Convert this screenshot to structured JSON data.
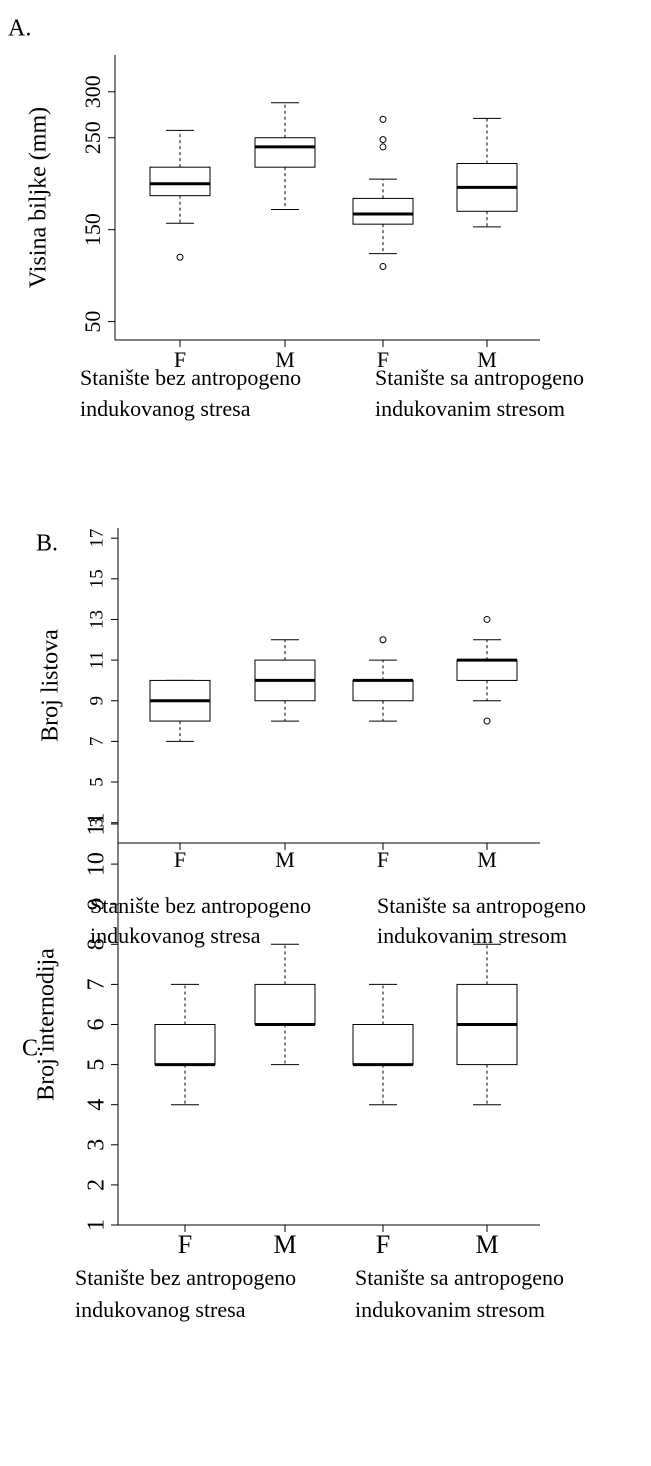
{
  "chart_data": [
    {
      "type": "box",
      "label": "A.",
      "ylabel": "Visina biljke (mm)",
      "categories": [
        "F",
        "M",
        "F",
        "M"
      ],
      "group_labels": [
        [
          "Stanište bez antropogeno",
          "indukovanog stresa"
        ],
        [
          "Stanište sa antropogeno",
          "indukovanim stresom"
        ]
      ],
      "ylim": [
        30,
        340
      ],
      "yticks": [
        50,
        150,
        250,
        300
      ],
      "boxes": [
        {
          "whislo": 157,
          "q1": 187,
          "med": 200,
          "q3": 218,
          "whishi": 258,
          "fliers": [
            120
          ]
        },
        {
          "whislo": 172,
          "q1": 218,
          "med": 240,
          "q3": 250,
          "whishi": 288,
          "fliers": []
        },
        {
          "whislo": 124,
          "q1": 156,
          "med": 167,
          "q3": 184,
          "whishi": 205,
          "fliers": [
            270,
            248,
            240,
            110
          ]
        },
        {
          "whislo": 153,
          "q1": 170,
          "med": 196,
          "q3": 222,
          "whishi": 271,
          "fliers": []
        }
      ]
    },
    {
      "type": "box",
      "label": "B.",
      "ylabel": "Broj listova",
      "categories": [
        "F",
        "M",
        "F",
        "M"
      ],
      "group_labels": [
        [
          "Stanište bez antropogeno",
          "indukovanog stresa"
        ],
        [
          "Stanište sa antropogeno",
          "indukovanim stresom"
        ]
      ],
      "ylim": [
        2,
        17.5
      ],
      "yticks": [
        3,
        5,
        7,
        9,
        11,
        13,
        15,
        17
      ],
      "boxes": [
        {
          "whislo": 7,
          "q1": 8,
          "med": 9,
          "q3": 10,
          "whishi": 10,
          "fliers": []
        },
        {
          "whislo": 8,
          "q1": 9,
          "med": 10,
          "q3": 11,
          "whishi": 12,
          "fliers": []
        },
        {
          "whislo": 8,
          "q1": 9,
          "med": 10,
          "q3": 10,
          "whishi": 11,
          "fliers": [
            12
          ]
        },
        {
          "whislo": 9,
          "q1": 10,
          "med": 11,
          "q3": 11,
          "whishi": 12,
          "fliers": [
            13,
            8
          ]
        }
      ]
    },
    {
      "type": "box",
      "label": "C.",
      "ylabel": "Broj internodija",
      "categories": [
        "F",
        "M",
        "F",
        "M"
      ],
      "group_labels": [
        [
          "Stanište bez antropogeno",
          "indukovanog stresa"
        ],
        [
          "Stanište sa antropogeno",
          "indukovanim stresom"
        ]
      ],
      "ylim": [
        1,
        11
      ],
      "yticks": [
        1,
        2,
        3,
        4,
        5,
        6,
        7,
        8,
        9,
        10,
        11
      ],
      "boxes": [
        {
          "whislo": 4,
          "q1": 5,
          "med": 5,
          "q3": 6,
          "whishi": 7,
          "fliers": []
        },
        {
          "whislo": 5,
          "q1": 6,
          "med": 6,
          "q3": 7,
          "whishi": 8,
          "fliers": []
        },
        {
          "whislo": 4,
          "q1": 5,
          "med": 5,
          "q3": 6,
          "whishi": 7,
          "fliers": []
        },
        {
          "whislo": 4,
          "q1": 5,
          "med": 6,
          "q3": 7,
          "whishi": 8,
          "fliers": []
        }
      ]
    }
  ]
}
